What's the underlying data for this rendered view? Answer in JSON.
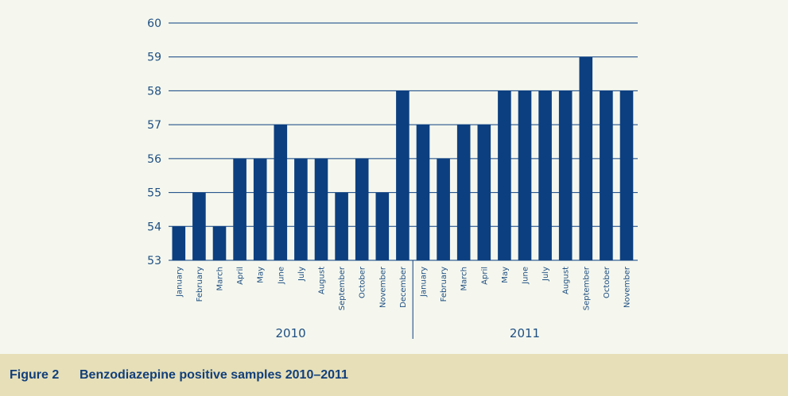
{
  "caption": {
    "label": "Figure 2",
    "title": "Benzodiazepine positive samples 2010–2011"
  },
  "colors": {
    "bar": "#0c3f80",
    "grid": "#0c3f80",
    "background": "#f5f7ee",
    "caption_background": "#e6dfb8",
    "text": "#1f4f82"
  },
  "chart_data": {
    "type": "bar",
    "title": "",
    "xlabel": "",
    "ylabel": "",
    "ylim": [
      53,
      60
    ],
    "yticks": [
      53,
      54,
      55,
      56,
      57,
      58,
      59,
      60
    ],
    "grid": true,
    "groups": [
      {
        "year": "2010",
        "categories": [
          "January",
          "February",
          "March",
          "April",
          "May",
          "June",
          "July",
          "August",
          "September",
          "October",
          "November",
          "December"
        ],
        "values": [
          54,
          55,
          54,
          56,
          56,
          57,
          56,
          56,
          55,
          56,
          55,
          58
        ]
      },
      {
        "year": "2011",
        "categories": [
          "January",
          "February",
          "March",
          "April",
          "May",
          "June",
          "July",
          "August",
          "September",
          "October",
          "November"
        ],
        "values": [
          57,
          56,
          57,
          57,
          58,
          58,
          58,
          58,
          59,
          58,
          58
        ]
      }
    ]
  }
}
